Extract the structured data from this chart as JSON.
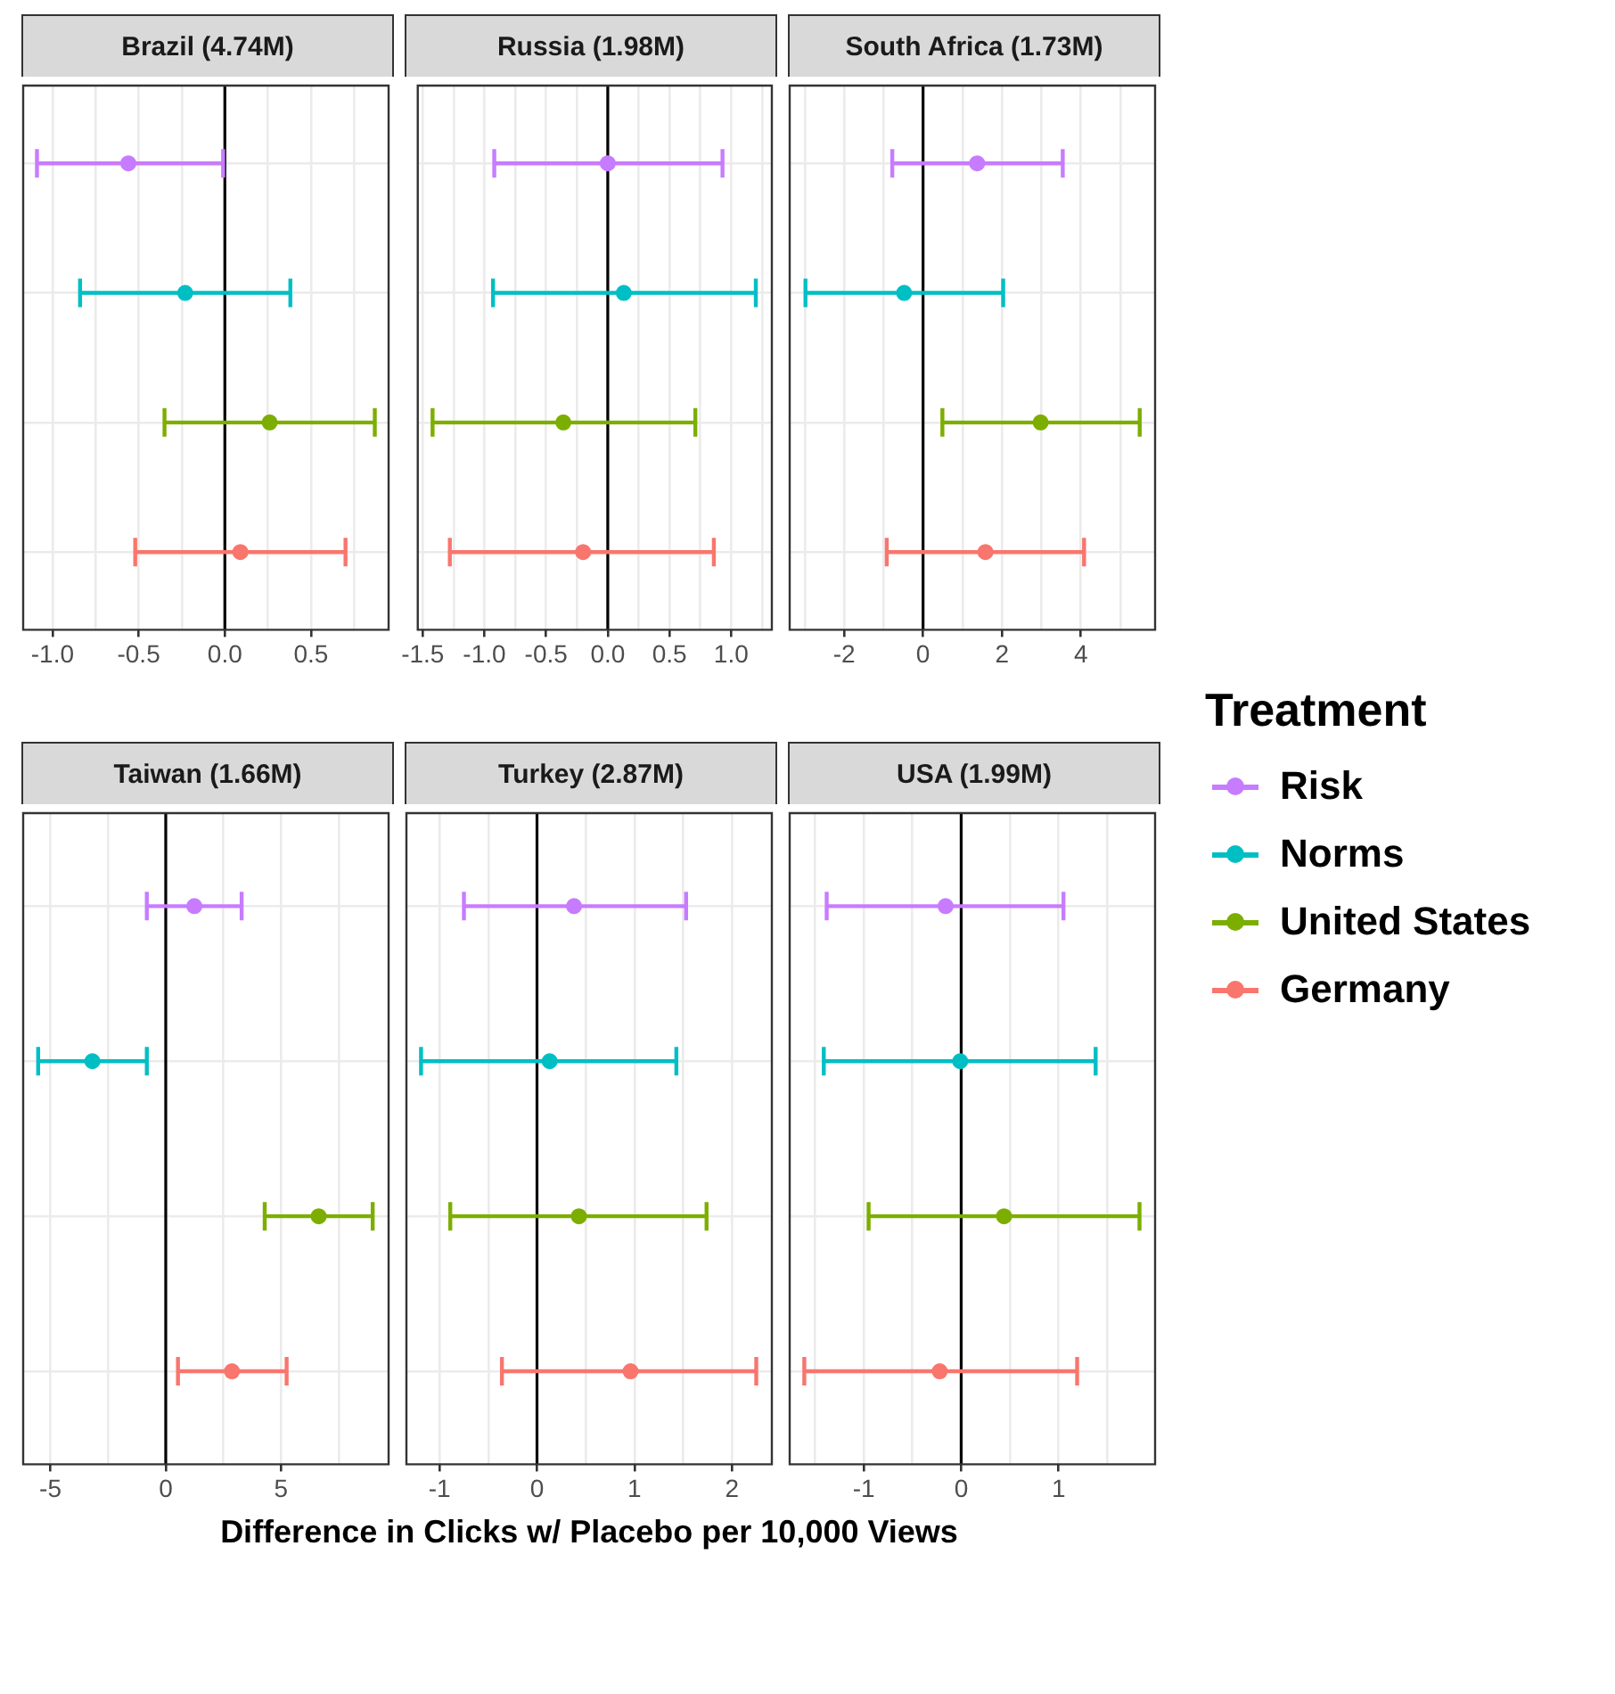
{
  "chart_data": [
    {
      "type": "scatter",
      "title": "Brazil (4.74M)",
      "orientation": "horizontal",
      "categories": [
        null,
        null,
        null,
        null
      ],
      "xlim": [
        -1.17,
        0.95
      ],
      "xticks": [
        {
          "value": -1.0,
          "label": "-1.0"
        },
        {
          "value": -0.75,
          "label": null
        },
        {
          "value": -0.5,
          "label": "-0.5"
        },
        {
          "value": -0.25,
          "label": null
        },
        {
          "value": 0,
          "label": "0.0"
        },
        {
          "value": 0.25,
          "label": null
        },
        {
          "value": 0.5,
          "label": "0.5"
        },
        {
          "value": 0.75,
          "label": null
        }
      ],
      "grid": true,
      "marker": "circle",
      "tick_labels": "x",
      "legend": "right",
      "legend_title": "Treatment",
      "ref_lines": [
        {
          "axis": "x",
          "value": 0,
          "color": "#000000"
        }
      ],
      "series": [
        {
          "name": "Risk",
          "color": "#c77cff",
          "values": [
            -0.56,
            null,
            null,
            null
          ],
          "errors": [
            [
              -1.09,
              -0.01
            ],
            null,
            null,
            null
          ]
        },
        {
          "name": "Norms",
          "color": "#00bfc4",
          "values": [
            null,
            -0.23,
            null,
            null
          ],
          "errors": [
            null,
            [
              -0.84,
              0.38
            ],
            null,
            null
          ]
        },
        {
          "name": "United States",
          "color": "#7cae00",
          "values": [
            null,
            null,
            0.26,
            null
          ],
          "errors": [
            null,
            null,
            [
              -0.35,
              0.87
            ],
            null
          ]
        },
        {
          "name": "Germany",
          "color": "#f8766d",
          "values": [
            null,
            null,
            null,
            0.09
          ],
          "errors": [
            null,
            null,
            null,
            [
              -0.52,
              0.7
            ]
          ]
        }
      ]
    },
    {
      "type": "scatter",
      "title": "Russia (1.98M)",
      "orientation": "horizontal",
      "categories": [
        null,
        null,
        null,
        null
      ],
      "xlim": [
        -1.54,
        1.33
      ],
      "xticks": [
        {
          "value": -1.5,
          "label": "-1.5"
        },
        {
          "value": -1.25,
          "label": null
        },
        {
          "value": -1.0,
          "label": "-1.0"
        },
        {
          "value": -0.75,
          "label": null
        },
        {
          "value": -0.5,
          "label": "-0.5"
        },
        {
          "value": -0.25,
          "label": null
        },
        {
          "value": 0,
          "label": "0.0"
        },
        {
          "value": 0.25,
          "label": null
        },
        {
          "value": 0.5,
          "label": "0.5"
        },
        {
          "value": 0.75,
          "label": null
        },
        {
          "value": 1.0,
          "label": "1.0"
        },
        {
          "value": 1.25,
          "label": null
        }
      ],
      "grid": true,
      "marker": "circle",
      "tick_labels": "x",
      "ref_lines": [
        {
          "axis": "x",
          "value": 0,
          "color": "#000000"
        }
      ],
      "series": [
        {
          "color": "#c77cff",
          "values": [
            0.0,
            null,
            null,
            null
          ],
          "errors": [
            [
              -0.92,
              0.93
            ],
            null,
            null,
            null
          ]
        },
        {
          "color": "#00bfc4",
          "values": [
            null,
            0.13,
            null,
            null
          ],
          "errors": [
            null,
            [
              -0.93,
              1.2
            ],
            null,
            null
          ]
        },
        {
          "color": "#7cae00",
          "values": [
            null,
            null,
            -0.36,
            null
          ],
          "errors": [
            null,
            null,
            [
              -1.42,
              0.71
            ],
            null
          ]
        },
        {
          "color": "#f8766d",
          "values": [
            null,
            null,
            null,
            -0.2
          ],
          "errors": [
            null,
            null,
            null,
            [
              -1.28,
              0.86
            ]
          ]
        }
      ]
    },
    {
      "type": "scatter",
      "title": "South Africa (1.73M)",
      "orientation": "horizontal",
      "categories": [
        null,
        null,
        null,
        null
      ],
      "xlim": [
        -3.38,
        5.88
      ],
      "xticks": [
        {
          "value": -3,
          "label": null
        },
        -2,
        {
          "value": -1,
          "label": null
        },
        0,
        {
          "value": 1,
          "label": null
        },
        2,
        {
          "value": 3,
          "label": null
        },
        4,
        {
          "value": 5,
          "label": null
        }
      ],
      "grid": true,
      "marker": "circle",
      "tick_labels": "x",
      "ref_lines": [
        {
          "axis": "x",
          "value": 0,
          "color": "#000000"
        }
      ],
      "series": [
        {
          "color": "#c77cff",
          "values": [
            1.37,
            null,
            null,
            null
          ],
          "errors": [
            [
              -0.78,
              3.54
            ],
            null,
            null,
            null
          ]
        },
        {
          "color": "#00bfc4",
          "values": [
            null,
            -0.48,
            null,
            null
          ],
          "errors": [
            null,
            [
              -2.98,
              2.03
            ],
            null,
            null
          ]
        },
        {
          "color": "#7cae00",
          "values": [
            null,
            null,
            2.98,
            null
          ],
          "errors": [
            null,
            null,
            [
              0.49,
              5.49
            ],
            null
          ]
        },
        {
          "color": "#f8766d",
          "values": [
            null,
            null,
            null,
            1.58
          ],
          "errors": [
            null,
            null,
            null,
            [
              -0.92,
              4.08
            ]
          ]
        }
      ]
    },
    {
      "type": "scatter",
      "title": "Taiwan (1.66M)",
      "orientation": "horizontal",
      "categories": [
        null,
        null,
        null,
        null
      ],
      "xlim": [
        -6.18,
        9.66
      ],
      "xticks": [
        -5,
        {
          "value": -2.5,
          "label": null
        },
        0,
        {
          "value": 2.5,
          "label": null
        },
        5,
        {
          "value": 7.5,
          "label": null
        }
      ],
      "grid": true,
      "marker": "circle",
      "tick_labels": "x",
      "ref_lines": [
        {
          "axis": "x",
          "value": 0,
          "color": "#000000"
        }
      ],
      "series": [
        {
          "color": "#c77cff",
          "values": [
            1.24,
            null,
            null,
            null
          ],
          "errors": [
            [
              -0.82,
              3.29
            ],
            null,
            null,
            null
          ]
        },
        {
          "color": "#00bfc4",
          "values": [
            null,
            -3.18,
            null,
            null
          ],
          "errors": [
            null,
            [
              -5.53,
              -0.82
            ],
            null,
            null
          ]
        },
        {
          "color": "#7cae00",
          "values": [
            null,
            null,
            6.63,
            null
          ],
          "errors": [
            null,
            null,
            [
              4.29,
              8.97
            ],
            null
          ]
        },
        {
          "color": "#f8766d",
          "values": [
            null,
            null,
            null,
            2.87
          ],
          "errors": [
            null,
            null,
            null,
            [
              0.53,
              5.24
            ]
          ]
        }
      ]
    },
    {
      "type": "scatter",
      "title": "Turkey (2.87M)",
      "orientation": "horizontal",
      "categories": [
        null,
        null,
        null,
        null
      ],
      "xlim": [
        -1.34,
        2.41
      ],
      "xlabel": "Difference in Clicks w/ Placebo per 10,000 Views",
      "xticks": [
        -1,
        {
          "value": -0.5,
          "label": null
        },
        0,
        {
          "value": 0.5,
          "label": null
        },
        1,
        {
          "value": 1.5,
          "label": null
        },
        2
      ],
      "grid": true,
      "marker": "circle",
      "tick_labels": "x",
      "ref_lines": [
        {
          "axis": "x",
          "value": 0,
          "color": "#000000"
        }
      ],
      "series": [
        {
          "color": "#c77cff",
          "values": [
            0.38,
            null,
            null,
            null
          ],
          "errors": [
            [
              -0.75,
              1.53
            ],
            null,
            null,
            null
          ]
        },
        {
          "color": "#00bfc4",
          "values": [
            null,
            0.13,
            null,
            null
          ],
          "errors": [
            null,
            [
              -1.19,
              1.43
            ],
            null,
            null
          ]
        },
        {
          "color": "#7cae00",
          "values": [
            null,
            null,
            0.43,
            null
          ],
          "errors": [
            null,
            null,
            [
              -0.89,
              1.74
            ],
            null
          ]
        },
        {
          "color": "#f8766d",
          "values": [
            null,
            null,
            null,
            0.96
          ],
          "errors": [
            null,
            null,
            null,
            [
              -0.36,
              2.25
            ]
          ]
        }
      ]
    },
    {
      "type": "scatter",
      "title": "USA (1.99M)",
      "orientation": "horizontal",
      "categories": [
        null,
        null,
        null,
        null
      ],
      "xlim": [
        -1.76,
        1.99
      ],
      "xticks": [
        {
          "value": -1.5,
          "label": null
        },
        -1,
        {
          "value": -0.5,
          "label": null
        },
        0,
        {
          "value": 0.5,
          "label": null
        },
        1,
        {
          "value": 1.5,
          "label": null
        }
      ],
      "grid": true,
      "marker": "circle",
      "tick_labels": "x",
      "ref_lines": [
        {
          "axis": "x",
          "value": 0,
          "color": "#000000"
        }
      ],
      "series": [
        {
          "color": "#c77cff",
          "values": [
            -0.16,
            null,
            null,
            null
          ],
          "errors": [
            [
              -1.38,
              1.05
            ],
            null,
            null,
            null
          ]
        },
        {
          "color": "#00bfc4",
          "values": [
            null,
            -0.01,
            null,
            null
          ],
          "errors": [
            null,
            [
              -1.41,
              1.38
            ],
            null,
            null
          ]
        },
        {
          "color": "#7cae00",
          "values": [
            null,
            null,
            0.44,
            null
          ],
          "errors": [
            null,
            null,
            [
              -0.95,
              1.83
            ],
            null
          ]
        },
        {
          "color": "#f8766d",
          "values": [
            null,
            null,
            null,
            -0.22
          ],
          "errors": [
            null,
            null,
            null,
            [
              -1.61,
              1.19
            ]
          ]
        }
      ]
    }
  ]
}
